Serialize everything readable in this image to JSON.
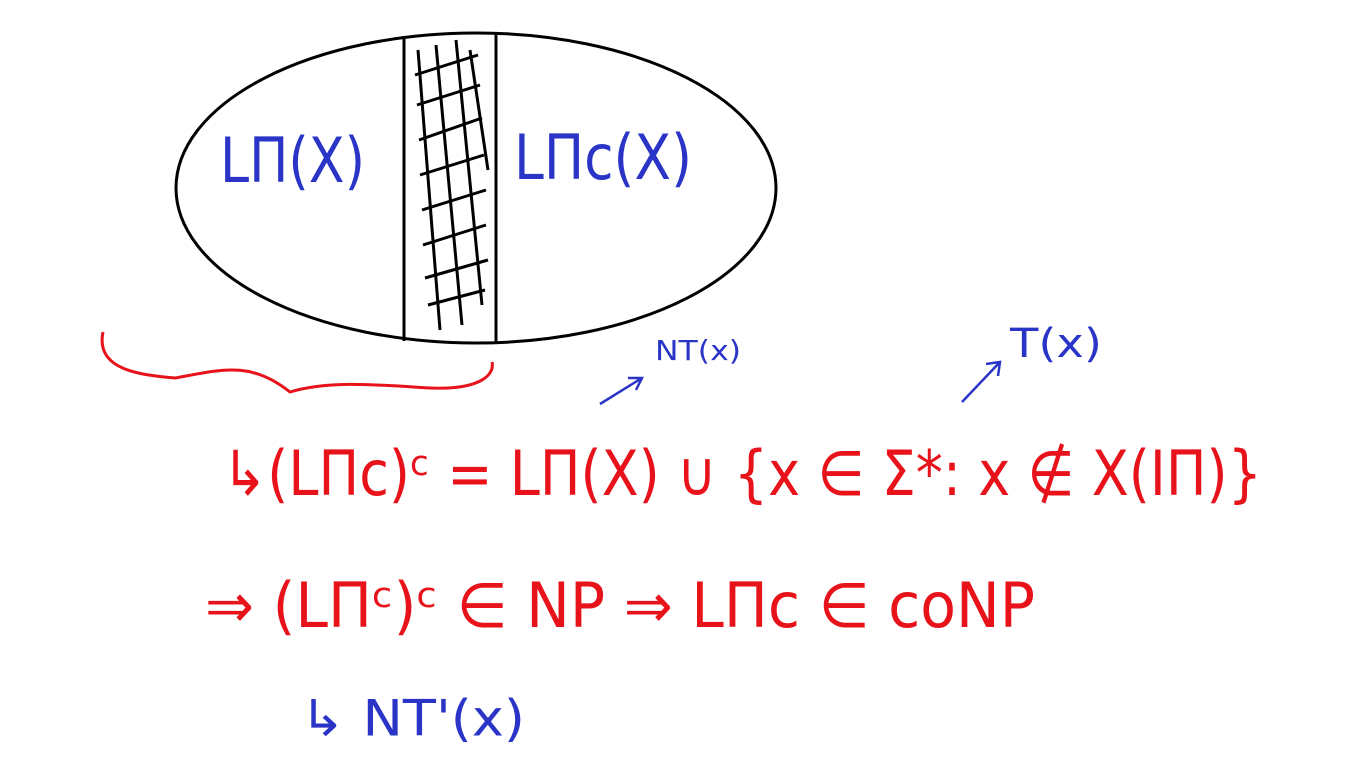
{
  "diagram": {
    "region_left": "LΠ(X)",
    "region_right": "LΠc(X)",
    "annotation_nt": "NT(x)",
    "annotation_t": "T(x)",
    "equation_1": "↳(LΠc)ᶜ = LΠ(X) ∪ {x ∈ Σ*: x ∉ X(IΠ)}",
    "equation_2": "⇒ (LΠᶜ)ᶜ ∈ NP ⇒ LΠc ∈ coNP",
    "annotation_nt_prime": "↳ NT'(x)"
  }
}
